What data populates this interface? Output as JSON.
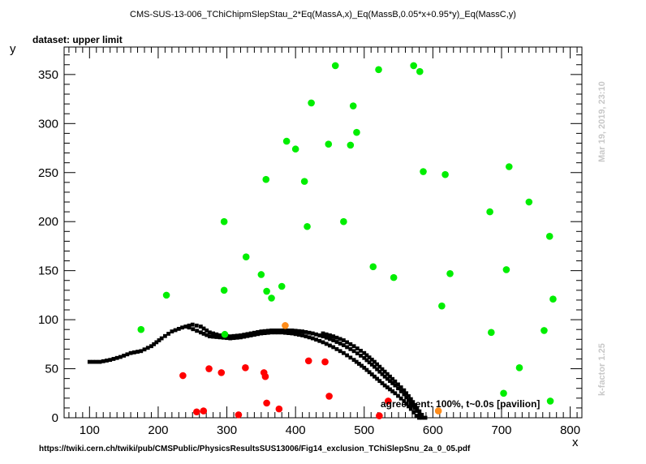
{
  "header": {
    "title": "CMS-SUS-13-006_TChiChipmSlepStau_2*Eq(MassA,x)_Eq(MassB,0.05*x+0.95*y)_Eq(MassC,y)",
    "dataset_label": "dataset: upper limit"
  },
  "footer": {
    "url": "https://twiki.cern.ch/twiki/pub/CMSPublic/PhysicsResultsSUS13006/Fig14_exclusion_TChiSlepSnu_2a_0_05.pdf"
  },
  "annotations": {
    "agreement": "agreement: 100%, t~0.0s [pavilion]",
    "timestamp": "Mar 19, 2019, 23:10",
    "kfactor": "k-factor 1.25"
  },
  "colors": {
    "excluded": "#ff0000",
    "allowed": "#00ee00",
    "borderline": "#ff8c1a",
    "exclusion_line": "#000000",
    "side_text": "#c8c8c8"
  },
  "chart_data": {
    "type": "scatter",
    "xlabel": "x",
    "ylabel": "y",
    "xlim": [
      63,
      817
    ],
    "ylim": [
      0,
      378
    ],
    "xticks": [
      100,
      200,
      300,
      400,
      500,
      600,
      700,
      800
    ],
    "yticks": [
      0,
      50,
      100,
      150,
      200,
      250,
      300,
      350
    ],
    "grid": false,
    "series": [
      {
        "color": "#00ee00",
        "points": [
          [
            175,
            90
          ],
          [
            212,
            125
          ],
          [
            296,
            200
          ],
          [
            296,
            130
          ],
          [
            297,
            85
          ],
          [
            328,
            164
          ],
          [
            350,
            146
          ],
          [
            357,
            243
          ],
          [
            358,
            129
          ],
          [
            365,
            122
          ],
          [
            380,
            134
          ],
          [
            387,
            282
          ],
          [
            400,
            274
          ],
          [
            413,
            241
          ],
          [
            417,
            195
          ],
          [
            423,
            321
          ],
          [
            448,
            279
          ],
          [
            458,
            359
          ],
          [
            470,
            200
          ],
          [
            480,
            278
          ],
          [
            484,
            318
          ],
          [
            489,
            291
          ],
          [
            513,
            154
          ],
          [
            521,
            355
          ],
          [
            543,
            143
          ],
          [
            572,
            359
          ],
          [
            581,
            353
          ],
          [
            586,
            251
          ],
          [
            613,
            114
          ],
          [
            618,
            248
          ],
          [
            625,
            147
          ],
          [
            683,
            210
          ],
          [
            685,
            87
          ],
          [
            703,
            25
          ],
          [
            707,
            151
          ],
          [
            711,
            256
          ],
          [
            726,
            51
          ],
          [
            740,
            220
          ],
          [
            762,
            89
          ],
          [
            770,
            185
          ],
          [
            771,
            17
          ],
          [
            775,
            121
          ]
        ]
      },
      {
        "color": "#ff0000",
        "points": [
          [
            236,
            43
          ],
          [
            256,
            6
          ],
          [
            266,
            7
          ],
          [
            274,
            50
          ],
          [
            292,
            46
          ],
          [
            317,
            3
          ],
          [
            327,
            51
          ],
          [
            354,
            46
          ],
          [
            356,
            42
          ],
          [
            358,
            15
          ],
          [
            376,
            9
          ],
          [
            419,
            58
          ],
          [
            443,
            57
          ],
          [
            449,
            22
          ],
          [
            522,
            2
          ],
          [
            535,
            17
          ]
        ]
      },
      {
        "color": "#ff8c1a",
        "points": [
          [
            385,
            94
          ],
          [
            608,
            7
          ]
        ]
      }
    ],
    "exclusion_curves": [
      {
        "color": "#000000",
        "points": [
          [
            100,
            57
          ],
          [
            115,
            57
          ],
          [
            130,
            59
          ],
          [
            145,
            62
          ],
          [
            160,
            66
          ],
          [
            175,
            68
          ],
          [
            190,
            73
          ],
          [
            205,
            81
          ],
          [
            220,
            88
          ],
          [
            235,
            92
          ],
          [
            250,
            95
          ],
          [
            262,
            93
          ],
          [
            275,
            87
          ],
          [
            290,
            84
          ],
          [
            305,
            83
          ],
          [
            320,
            84
          ],
          [
            335,
            86
          ],
          [
            350,
            88
          ],
          [
            365,
            89
          ],
          [
            380,
            89
          ],
          [
            395,
            89
          ],
          [
            410,
            88
          ],
          [
            425,
            86
          ],
          [
            440,
            83
          ],
          [
            455,
            79
          ],
          [
            470,
            74
          ],
          [
            485,
            68
          ],
          [
            500,
            61
          ],
          [
            515,
            52
          ],
          [
            530,
            42
          ],
          [
            545,
            33
          ],
          [
            558,
            24
          ],
          [
            568,
            15
          ],
          [
            577,
            7
          ],
          [
            584,
            0
          ]
        ]
      },
      {
        "color": "#000000",
        "points": [
          [
            245,
            92
          ],
          [
            262,
            87
          ],
          [
            275,
            83
          ],
          [
            290,
            82
          ],
          [
            305,
            81
          ],
          [
            320,
            82
          ],
          [
            335,
            84
          ],
          [
            350,
            86
          ],
          [
            365,
            87
          ],
          [
            380,
            87
          ],
          [
            395,
            86
          ],
          [
            410,
            84
          ],
          [
            425,
            81
          ],
          [
            440,
            77
          ],
          [
            455,
            72
          ],
          [
            470,
            66
          ],
          [
            485,
            59
          ],
          [
            500,
            51
          ],
          [
            515,
            42
          ],
          [
            530,
            33
          ],
          [
            545,
            25
          ],
          [
            558,
            17
          ],
          [
            568,
            9
          ],
          [
            576,
            2
          ],
          [
            580,
            0
          ]
        ]
      },
      {
        "color": "#000000",
        "points": [
          [
            440,
            86
          ],
          [
            455,
            83
          ],
          [
            470,
            79
          ],
          [
            485,
            73
          ],
          [
            500,
            66
          ],
          [
            515,
            57
          ],
          [
            530,
            47
          ],
          [
            545,
            37
          ],
          [
            558,
            28
          ],
          [
            568,
            19
          ],
          [
            577,
            10
          ],
          [
            584,
            3
          ],
          [
            589,
            0
          ]
        ]
      }
    ]
  }
}
